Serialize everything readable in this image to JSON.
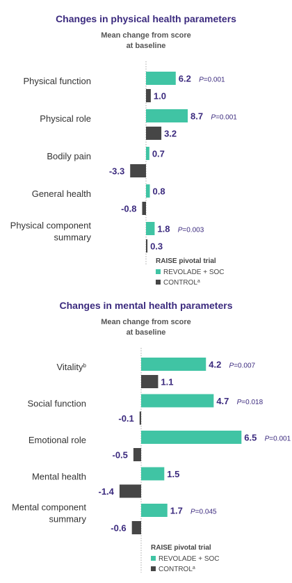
{
  "colors": {
    "treatment": "#40c4a4",
    "control": "#464646",
    "axis": "#aaaaaa",
    "title": "#3b2a7e"
  },
  "chart_data": [
    {
      "type": "bar",
      "orientation": "horizontal",
      "title": "Changes in physical health parameters",
      "subtitle_lines": [
        "Mean change from score",
        "at baseline"
      ],
      "categories": [
        {
          "lines": [
            "Physical function"
          ],
          "sup": ""
        },
        {
          "lines": [
            "Physical role"
          ],
          "sup": ""
        },
        {
          "lines": [
            "Bodily pain"
          ],
          "sup": ""
        },
        {
          "lines": [
            "General health"
          ],
          "sup": ""
        },
        {
          "lines": [
            "Physical component",
            "summary"
          ],
          "sup": ""
        }
      ],
      "series": [
        {
          "name": "REVOLADE + SOC",
          "sup": "",
          "values": [
            6.2,
            8.7,
            0.7,
            0.8,
            1.8
          ],
          "labels": [
            "6.2",
            "8.7",
            "0.7",
            "0.8",
            "1.8"
          ],
          "p_values": [
            "0.001",
            "0.001",
            "",
            "",
            "0.003"
          ]
        },
        {
          "name": "CONTROL",
          "sup": "a",
          "values": [
            1.0,
            3.2,
            -3.3,
            -0.8,
            0.3
          ],
          "labels": [
            "1.0",
            "3.2",
            "-3.3",
            "-0.8",
            "0.3"
          ],
          "p_values": [
            "",
            "",
            "",
            "",
            ""
          ]
        }
      ],
      "legend_title": "RAISE pivotal trial",
      "legend_position": "bottom-center"
    },
    {
      "type": "bar",
      "orientation": "horizontal",
      "title": "Changes in mental health parameters",
      "subtitle_lines": [
        "Mean change from score",
        "at baseline"
      ],
      "categories": [
        {
          "lines": [
            "Vitality"
          ],
          "sup": "b"
        },
        {
          "lines": [
            "Social function"
          ],
          "sup": ""
        },
        {
          "lines": [
            "Emotional role"
          ],
          "sup": ""
        },
        {
          "lines": [
            "Mental health"
          ],
          "sup": ""
        },
        {
          "lines": [
            "Mental component",
            "summary"
          ],
          "sup": ""
        }
      ],
      "series": [
        {
          "name": "REVOLADE + SOC",
          "sup": "",
          "values": [
            4.2,
            4.7,
            6.5,
            1.5,
            1.7
          ],
          "labels": [
            "4.2",
            "4.7",
            "6.5",
            "1.5",
            "1.7"
          ],
          "p_values": [
            "0.007",
            "0.018",
            "0.001",
            "",
            "0.045"
          ]
        },
        {
          "name": "CONTROL",
          "sup": "a",
          "values": [
            1.1,
            -0.1,
            -0.5,
            -1.4,
            -0.6
          ],
          "labels": [
            "1.1",
            "-0.1",
            "-0.5",
            "-1.4",
            "-0.6"
          ],
          "p_values": [
            "",
            "",
            "",
            "",
            ""
          ]
        }
      ],
      "legend_title": "RAISE pivotal trial",
      "legend_position": "bottom-center"
    }
  ]
}
